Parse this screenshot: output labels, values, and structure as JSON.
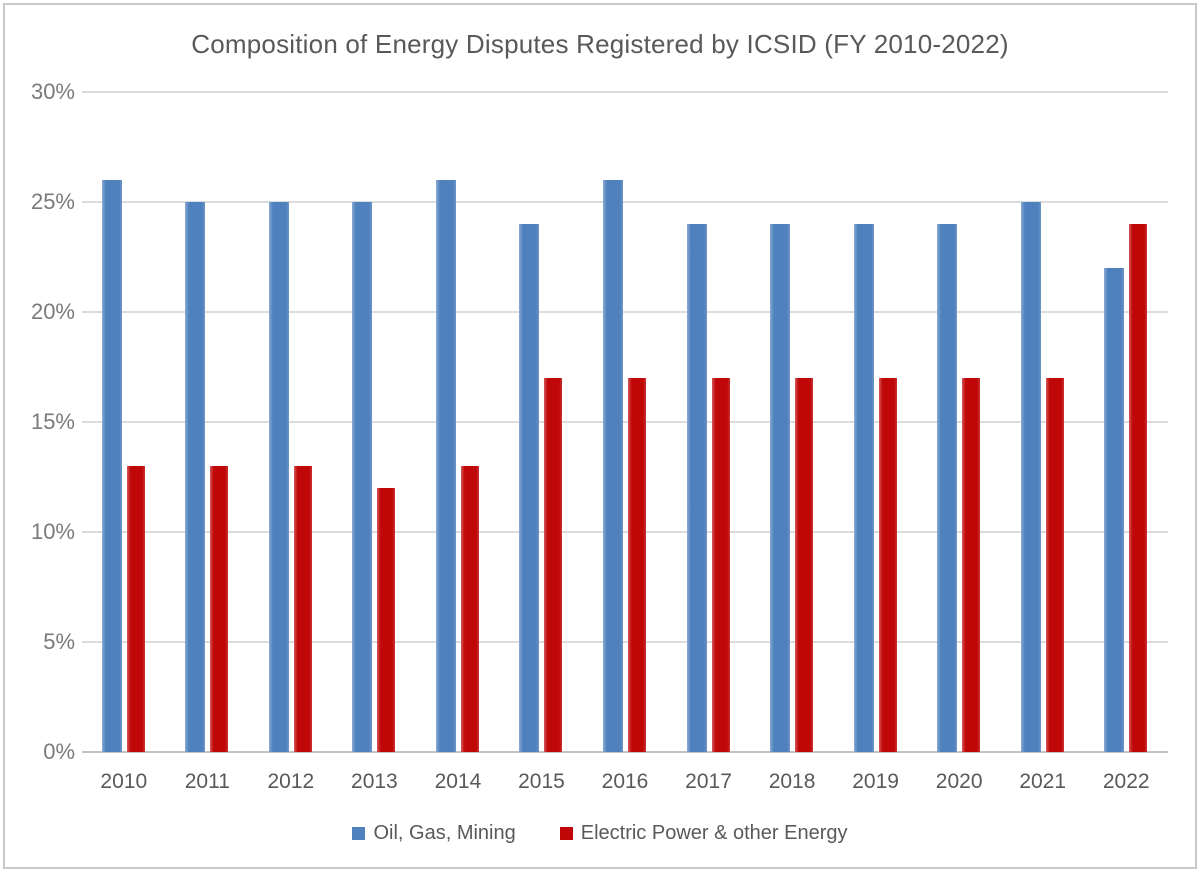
{
  "chart_data": {
    "type": "bar",
    "title": "Composition of Energy Disputes Registered by ICSID (FY 2010-2022)",
    "categories": [
      "2010",
      "2011",
      "2012",
      "2013",
      "2014",
      "2015",
      "2016",
      "2017",
      "2018",
      "2019",
      "2020",
      "2021",
      "2022"
    ],
    "series": [
      {
        "name": "Oil, Gas, Mining",
        "color": "#4e81bd",
        "values": [
          26,
          25,
          25,
          25,
          26,
          24,
          26,
          24,
          24,
          24,
          24,
          25,
          22
        ]
      },
      {
        "name": "Electric Power & other Energy",
        "color": "#c00708",
        "values": [
          13,
          13,
          13,
          12,
          13,
          17,
          17,
          17,
          17,
          17,
          17,
          17,
          24
        ]
      }
    ],
    "xlabel": "",
    "ylabel": "",
    "ylim": [
      0,
      30
    ],
    "ytick_step": 5,
    "ytick_labels": [
      "30%",
      "25%",
      "20%",
      "15%",
      "10%",
      "5%",
      "0%"
    ],
    "grid": true,
    "legend_position": "bottom",
    "colors": {
      "grid": "#dcdcdc",
      "axis_baseline": "#c3c3c3",
      "title_text": "#595959",
      "tick_text": "#7a7a7a",
      "category_text": "#595959",
      "frame_border": "#c9c9c9",
      "background": "#ffffff"
    }
  }
}
